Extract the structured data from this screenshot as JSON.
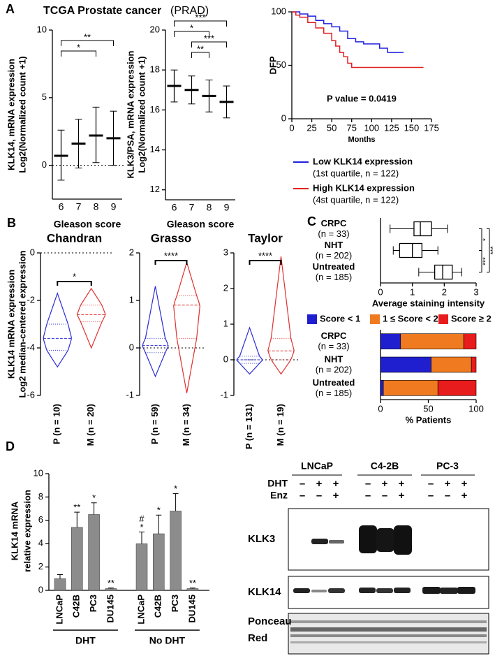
{
  "panel_labels": [
    "A",
    "B",
    "C",
    "D"
  ],
  "panel_a_title": {
    "bold": "TCGA Prostate cancer",
    "normal": "(PRAD)"
  },
  "chart_data": [
    {
      "type": "dot",
      "y_label": [
        "KLK14, mRNA expression",
        "Log2(Normalized count +1)"
      ],
      "x_label": "Gleason score",
      "categories": [
        "6",
        "7",
        "8",
        "9"
      ],
      "means": [
        0.7,
        1.6,
        2.2,
        2.0
      ],
      "sd_low": [
        -1.1,
        -0.2,
        0.2,
        0.0
      ],
      "sd_high": [
        2.6,
        3.4,
        4.3,
        4.0
      ],
      "color": "#000000",
      "ylim": [
        -2.5,
        10
      ],
      "yticks": [
        0,
        5,
        10
      ],
      "reference_line": 0,
      "significance": [
        {
          "from": 0,
          "to": 3,
          "label": "**"
        },
        {
          "from": 0,
          "to": 2,
          "label": "*"
        }
      ]
    },
    {
      "type": "dot",
      "y_label": [
        "KLK3/PSA, mRNA expression",
        "Log2(Normalized count +1)"
      ],
      "x_label": "Gleason score",
      "categories": [
        "6",
        "7",
        "8",
        "9"
      ],
      "means": [
        17.2,
        17.0,
        16.7,
        16.4
      ],
      "sd_low": [
        16.4,
        16.3,
        15.9,
        15.6
      ],
      "sd_high": [
        18.0,
        17.7,
        17.5,
        17.2
      ],
      "color": "#000000",
      "ylim": [
        11.5,
        20
      ],
      "yticks": [
        12,
        14,
        16,
        18,
        20
      ],
      "significance": [
        {
          "from": 0,
          "to": 3,
          "label": "***"
        },
        {
          "from": 0,
          "to": 2,
          "label": "*"
        },
        {
          "from": 1,
          "to": 3,
          "label": "***"
        },
        {
          "from": 1,
          "to": 2,
          "label": "**"
        }
      ]
    },
    {
      "type": "step",
      "y_label": "DFP",
      "x_label": "Months",
      "annotation": "P value = 0.0419",
      "xlim": [
        0,
        175
      ],
      "xticks": [
        0,
        25,
        50,
        75,
        100,
        125,
        150,
        175
      ],
      "ylim": [
        0,
        100
      ],
      "yticks": [
        0,
        50,
        100
      ],
      "series": [
        {
          "name": "Low KLK14 expression",
          "detail": "(1st quartile, n = 122)",
          "color": "#2020e0",
          "x": [
            0,
            5,
            10,
            20,
            30,
            40,
            50,
            60,
            70,
            80,
            90,
            110,
            120,
            140
          ],
          "values": [
            100,
            100,
            98,
            96,
            92,
            89,
            86,
            82,
            75,
            72,
            70,
            66,
            62,
            62
          ]
        },
        {
          "name": "High KLK14 expression",
          "detail": "(4st quartile, n = 122)",
          "color": "#e02020",
          "x": [
            0,
            5,
            10,
            20,
            30,
            40,
            50,
            55,
            60,
            65,
            70,
            75,
            165
          ],
          "values": [
            100,
            97,
            95,
            90,
            85,
            80,
            73,
            68,
            62,
            58,
            52,
            48,
            48
          ]
        }
      ]
    },
    {
      "type": "violin",
      "title": "Chandran",
      "y_label": [
        "KLK14 mRNA expression",
        "Log2 median-centered expression"
      ],
      "categories": [
        "P (n = 10)",
        "M (n = 20)"
      ],
      "colors": [
        "#2b2bd6",
        "#e03030"
      ],
      "min": [
        -4.8,
        -4.0
      ],
      "q1": [
        -4.1,
        -2.9
      ],
      "median": [
        -3.6,
        -2.6
      ],
      "q3": [
        -3.0,
        -2.2
      ],
      "max": [
        -1.7,
        -1.5
      ],
      "ylim": [
        -6,
        0
      ],
      "yticks": [
        -6,
        -4,
        -2,
        0
      ],
      "reference_line": 0,
      "significance": [
        {
          "from": 0,
          "to": 1,
          "label": "*"
        }
      ]
    },
    {
      "type": "violin",
      "title": "Grasso",
      "categories": [
        "P (n = 59)",
        "M (n = 34)"
      ],
      "colors": [
        "#2b2bd6",
        "#e03030"
      ],
      "min": [
        -0.6,
        -0.95
      ],
      "q1": [
        -0.1,
        0.2
      ],
      "median": [
        0.05,
        0.9
      ],
      "q3": [
        0.2,
        1.1
      ],
      "max": [
        1.3,
        1.8
      ],
      "ylim": [
        -1,
        2
      ],
      "yticks": [
        -1,
        0,
        1,
        2
      ],
      "reference_line": 0,
      "significance": [
        {
          "from": 0,
          "to": 1,
          "label": "****"
        }
      ]
    },
    {
      "type": "violin",
      "title": "Taylor",
      "categories": [
        "P (n = 131)",
        "M (n = 19)"
      ],
      "colors": [
        "#2b2bd6",
        "#e03030"
      ],
      "min": [
        -0.4,
        -0.4
      ],
      "q1": [
        -0.1,
        0.0
      ],
      "median": [
        0,
        0.25
      ],
      "q3": [
        0.1,
        0.6
      ],
      "max": [
        0.9,
        2.9
      ],
      "ylim": [
        -1,
        3
      ],
      "yticks": [
        -1,
        0,
        1,
        2,
        3
      ],
      "reference_line": 0,
      "significance": [
        {
          "from": 0,
          "to": 1,
          "label": "****"
        }
      ]
    },
    {
      "type": "box",
      "x_label": "Average staining intensity",
      "categories": [
        [
          "CRPC",
          "(n = 33)"
        ],
        [
          "NHT",
          "(n = 202)"
        ],
        [
          "Untreated",
          "(n = 185)"
        ]
      ],
      "min": [
        0.3,
        0.4,
        1.2
      ],
      "q1": [
        1.05,
        0.6,
        1.7
      ],
      "median": [
        1.25,
        1.0,
        1.95
      ],
      "q3": [
        1.6,
        1.3,
        2.25
      ],
      "max": [
        2.1,
        1.8,
        2.55
      ],
      "xlim": [
        0,
        3
      ],
      "xticks": [
        0,
        1,
        2,
        3
      ],
      "significance": [
        {
          "from": 0,
          "to": 1,
          "label": "*"
        },
        {
          "from": 1,
          "to": 2,
          "label": "***"
        },
        {
          "from": 0,
          "to": 2,
          "label": "***"
        }
      ]
    },
    {
      "type": "stacked_bar",
      "x_label": "% Patients",
      "legend": "top",
      "categories": [
        [
          "CRPC",
          "(n = 33)"
        ],
        [
          "NHT",
          "(n = 202)"
        ],
        [
          "Untreated",
          "(n = 185)"
        ]
      ],
      "series": [
        {
          "name": "Score < 1",
          "color": "#1f1fd0",
          "values": [
            21,
            53,
            3
          ]
        },
        {
          "name": "1 ≤ Score < 2",
          "color": "#f07a20",
          "values": [
            66,
            42,
            57
          ]
        },
        {
          "name": "Score ≥ 2",
          "color": "#e81c1c",
          "values": [
            13,
            5,
            40
          ]
        }
      ],
      "xlim": [
        0,
        100
      ],
      "xticks": [
        0,
        50,
        100
      ]
    },
    {
      "type": "bar",
      "y_label": [
        "KLK14 mRNA",
        "relative expression"
      ],
      "categories": [
        "LNCaP",
        "C42B",
        "PC3",
        "DU145",
        "LNCaP",
        "C42B",
        "PC3",
        "DU145"
      ],
      "values": [
        1.0,
        5.4,
        6.5,
        0.15,
        4.0,
        4.85,
        6.8,
        0.15
      ],
      "errors": [
        0.35,
        1.3,
        1.0,
        0.05,
        1.0,
        1.6,
        1.5,
        0.05
      ],
      "annotations": [
        null,
        [
          "**"
        ],
        [
          "*"
        ],
        [
          "**"
        ],
        [
          "#",
          "*"
        ],
        [
          "*"
        ],
        [
          "*"
        ],
        [
          "**"
        ]
      ],
      "groups": [
        {
          "label": "DHT",
          "span": [
            0,
            3
          ]
        },
        {
          "label": "No DHT",
          "span": [
            4,
            7
          ]
        }
      ],
      "color": "#8c8c8c",
      "ylim": [
        0,
        10
      ],
      "yticks": [
        0,
        2,
        4,
        6,
        8,
        10
      ]
    }
  ],
  "blot": {
    "cell_lines": [
      "LNCaP",
      "C4-2B",
      "PC-3"
    ],
    "treatments": [
      {
        "name": "DHT",
        "signs": [
          "–",
          "+",
          "+",
          "–",
          "+",
          "+",
          "–",
          "+",
          "+"
        ]
      },
      {
        "name": "Enz",
        "signs": [
          "–",
          "–",
          "+",
          "–",
          "–",
          "+",
          "–",
          "–",
          "+"
        ]
      }
    ],
    "band_labels": [
      [
        "KLK3"
      ],
      [
        "KLK14"
      ],
      [
        "Ponceau",
        "Red"
      ]
    ]
  }
}
